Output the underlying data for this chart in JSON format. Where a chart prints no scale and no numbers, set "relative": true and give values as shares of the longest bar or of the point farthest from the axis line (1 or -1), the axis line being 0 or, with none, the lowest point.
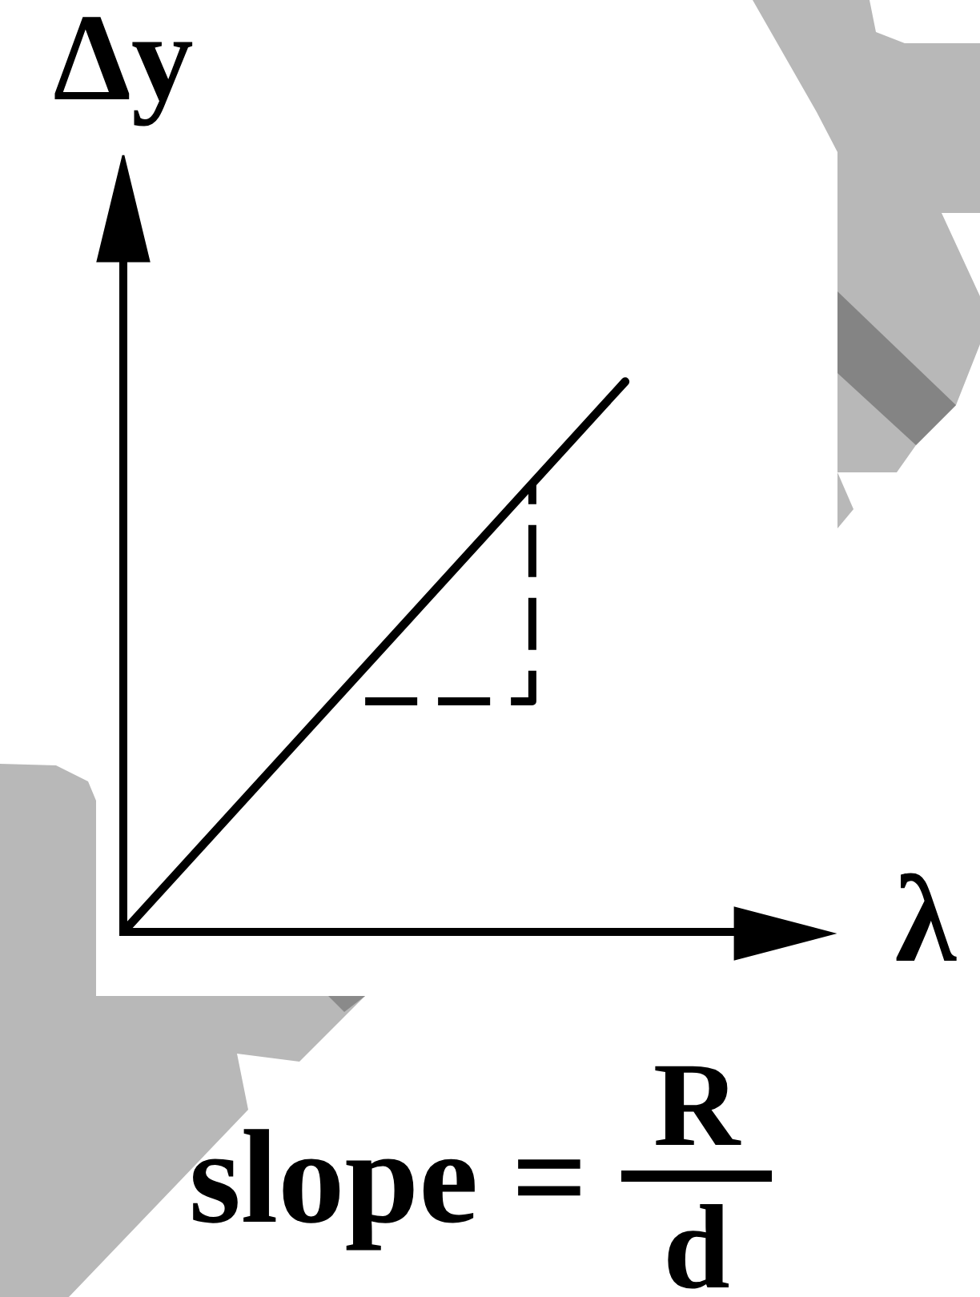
{
  "chart_data": {
    "type": "line",
    "xlabel": "λ",
    "ylabel": "Δy",
    "categories": [
      null,
      null
    ],
    "relative": true,
    "series": [
      {
        "color": "#000000",
        "values": [
          0,
          1
        ]
      }
    ],
    "line_style": "solid",
    "annotations": [
      "slope =",
      "R",
      "d"
    ]
  }
}
